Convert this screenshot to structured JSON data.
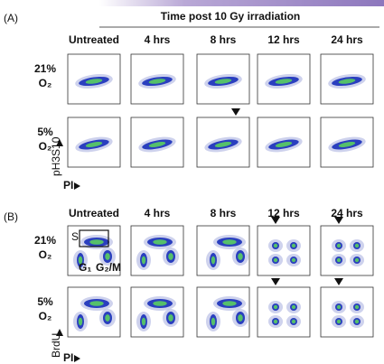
{
  "panel_a": {
    "label": "(A)",
    "header": "Time post 10 Gy irradiation",
    "columns": [
      "Untreated",
      "4 hrs",
      "8 hrs",
      "12 hrs",
      "24 hrs"
    ],
    "rows": [
      {
        "label": "21%",
        "sub": "O₂"
      },
      {
        "label": "5%",
        "sub": "O₂"
      }
    ],
    "y_axis": "pH3S10",
    "x_axis": "PI"
  },
  "panel_b": {
    "label": "(B)",
    "columns": [
      "Untreated",
      "4 hrs",
      "8 hrs",
      "12 hrs",
      "24 hrs"
    ],
    "rows": [
      {
        "label": "21%",
        "sub": "O₂"
      },
      {
        "label": "5%",
        "sub": "O₂"
      }
    ],
    "gates": {
      "s": "S",
      "g1": "G₁",
      "g2m": "G₂/M"
    },
    "y_axis": "BrdU",
    "x_axis": "PI"
  }
}
